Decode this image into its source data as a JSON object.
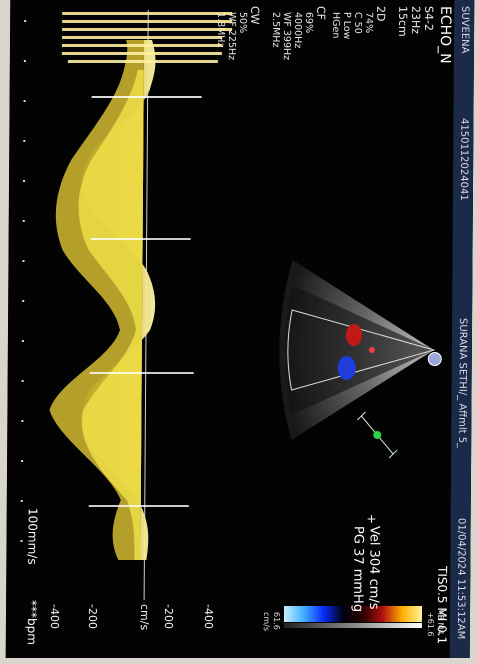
{
  "header": {
    "left": "SUVEENA",
    "id": "4150112024041",
    "patient": "SURANA SETHI/_ Affmlt 5_",
    "datetime": "01/04/2024  11:53:12AM",
    "indices": "TIS0.5  MI 0.1"
  },
  "mode": {
    "title": "ECHO_N",
    "probe": "S4-2",
    "frame_rate": "23Hz",
    "depth": "15cm"
  },
  "settings_2d": {
    "title": "2D",
    "lines": [
      "74%",
      "C 50",
      "P Low",
      "HGen"
    ]
  },
  "settings_cf": {
    "title": "CF",
    "lines": [
      "69%",
      "4000Hz",
      "WF 399Hz",
      "2.5MHz"
    ]
  },
  "settings_cw": {
    "title": "CW",
    "lines": [
      "50%",
      "WF 225Hz",
      "1.8MHz"
    ]
  },
  "colorbar": {
    "top_label": "M3 M4",
    "scale_top": "+61.6",
    "scale_bottom": "61.6",
    "unit": "cm/s"
  },
  "measurement": {
    "vel": "Vel  304 cm/s",
    "pg": "PG  37 mmHg"
  },
  "doppler_scale": {
    "unit": "cm/s",
    "ticks": [
      "-400",
      "-200",
      "-200",
      "-400"
    ]
  },
  "footer": {
    "sweep": "100mm/s",
    "hr": "***bpm"
  },
  "colors": {
    "spectral": "#f2e24a",
    "header_bg": "#1b2a48",
    "background": "#030303"
  }
}
